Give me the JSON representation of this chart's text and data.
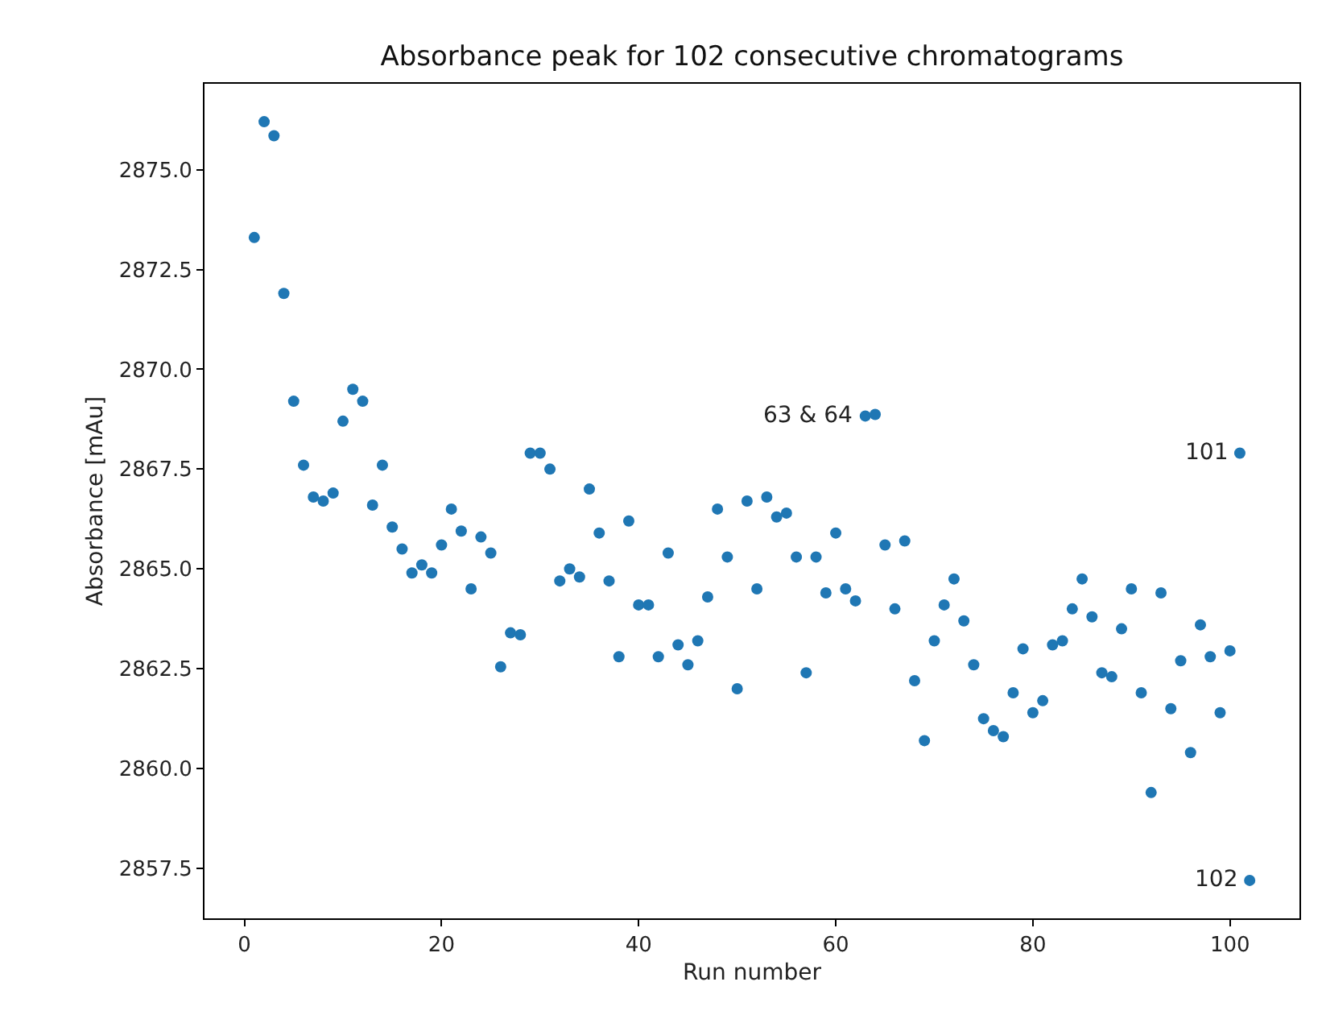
{
  "chart_data": {
    "type": "scatter",
    "title": "Absorbance peak for 102 consecutive chromatograms",
    "xlabel": "Run number",
    "ylabel": "Absorbance [mAu]",
    "x": [
      1,
      2,
      3,
      4,
      5,
      6,
      7,
      8,
      9,
      10,
      11,
      12,
      13,
      14,
      15,
      16,
      17,
      18,
      19,
      20,
      21,
      22,
      23,
      24,
      25,
      26,
      27,
      28,
      29,
      30,
      31,
      32,
      33,
      34,
      35,
      36,
      37,
      38,
      39,
      40,
      41,
      42,
      43,
      44,
      45,
      46,
      47,
      48,
      49,
      50,
      51,
      52,
      53,
      54,
      55,
      56,
      57,
      58,
      59,
      60,
      61,
      62,
      63,
      64,
      65,
      66,
      67,
      68,
      69,
      70,
      71,
      72,
      73,
      74,
      75,
      76,
      77,
      78,
      79,
      80,
      81,
      82,
      83,
      84,
      85,
      86,
      87,
      88,
      89,
      90,
      91,
      92,
      93,
      94,
      95,
      96,
      97,
      98,
      99,
      100,
      101,
      102
    ],
    "series": [
      {
        "color": "#1f77b4",
        "values": [
          2873.3,
          2876.2,
          2875.85,
          2871.9,
          2869.2,
          2867.6,
          2866.8,
          2866.7,
          2866.9,
          2868.7,
          2869.5,
          2869.2,
          2866.6,
          2867.6,
          2866.05,
          2865.5,
          2864.9,
          2865.1,
          2864.9,
          2865.6,
          2866.5,
          2865.95,
          2864.5,
          2865.8,
          2865.4,
          2862.55,
          2863.4,
          2863.35,
          2867.9,
          2867.9,
          2867.5,
          2864.7,
          2865.0,
          2864.8,
          2867.0,
          2865.9,
          2864.7,
          2862.8,
          2866.2,
          2864.1,
          2864.1,
          2862.8,
          2865.4,
          2863.1,
          2862.6,
          2863.2,
          2864.3,
          2866.5,
          2865.3,
          2862.0,
          2866.7,
          2864.5,
          2866.8,
          2866.3,
          2866.4,
          2865.3,
          2862.4,
          2865.3,
          2864.4,
          2865.9,
          2864.5,
          2864.2,
          2868.83,
          2868.87,
          2865.6,
          2864.0,
          2865.7,
          2862.2,
          2860.7,
          2863.2,
          2864.1,
          2864.75,
          2863.7,
          2862.6,
          2861.25,
          2860.95,
          2860.8,
          2861.9,
          2863.0,
          2861.4,
          2861.7,
          2863.1,
          2863.2,
          2864.0,
          2864.75,
          2863.8,
          2862.4,
          2862.3,
          2863.5,
          2864.5,
          2861.9,
          2859.4,
          2864.4,
          2861.5,
          2862.7,
          2860.4,
          2863.6,
          2862.8,
          2861.4,
          2862.95,
          2867.9,
          2857.2
        ]
      }
    ],
    "xlim": [
      -4.05,
      107.05
    ],
    "xticks": [
      0,
      20,
      40,
      60,
      80,
      100
    ],
    "ylim": [
      2856.25,
      2877.15
    ],
    "yticks": [
      {
        "value": 2857.5,
        "label": "2857.5"
      },
      {
        "value": 2860,
        "label": "2860.0"
      },
      {
        "value": 2862.5,
        "label": "2862.5"
      },
      {
        "value": 2865,
        "label": "2865.0"
      },
      {
        "value": 2867.5,
        "label": "2867.5"
      },
      {
        "value": 2870,
        "label": "2870.0"
      },
      {
        "value": 2872.5,
        "label": "2872.5"
      },
      {
        "value": 2875,
        "label": "2875.0"
      }
    ],
    "marker": "circle",
    "grid": false,
    "legend": false,
    "annotations": [
      {
        "text": "63 & 64",
        "x": 63,
        "y": 2868.83
      },
      {
        "text": "101",
        "x": 101,
        "y": 2867.9
      },
      {
        "text": "102",
        "x": 102,
        "y": 2857.2
      }
    ]
  }
}
